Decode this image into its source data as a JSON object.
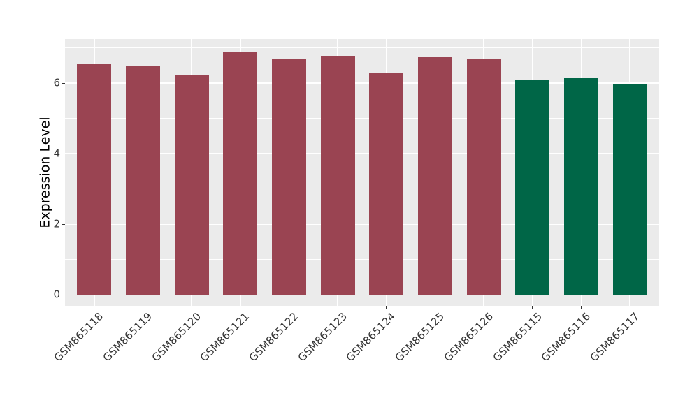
{
  "chart_data": {
    "type": "bar",
    "title": "",
    "xlabel": "",
    "ylabel": "Expression Level",
    "categories": [
      "GSM865118",
      "GSM865119",
      "GSM865120",
      "GSM865121",
      "GSM865122",
      "GSM865123",
      "GSM865124",
      "GSM865125",
      "GSM865126",
      "GSM865115",
      "GSM865116",
      "GSM865117"
    ],
    "values": [
      6.55,
      6.48,
      6.23,
      6.9,
      6.69,
      6.77,
      6.28,
      6.75,
      6.68,
      6.1,
      6.14,
      5.98
    ],
    "bar_colors": [
      "#9A4452",
      "#9A4452",
      "#9A4452",
      "#9A4452",
      "#9A4452",
      "#9A4452",
      "#9A4452",
      "#9A4452",
      "#9A4452",
      "#006647",
      "#006647",
      "#006647"
    ],
    "color_groups": {
      "maroon": "#9A4452",
      "green": "#006647"
    },
    "y_ticks": [
      0,
      2,
      4,
      6
    ],
    "y_minor_ticks": [
      1,
      3,
      5,
      7
    ],
    "ylim": [
      -0.31,
      7.25
    ],
    "grid": true,
    "legend": "none",
    "panel_background": "#EBEBEB",
    "grid_color": "#FFFFFF",
    "tick_color": "#333333",
    "axis_text_color": "#333333"
  }
}
